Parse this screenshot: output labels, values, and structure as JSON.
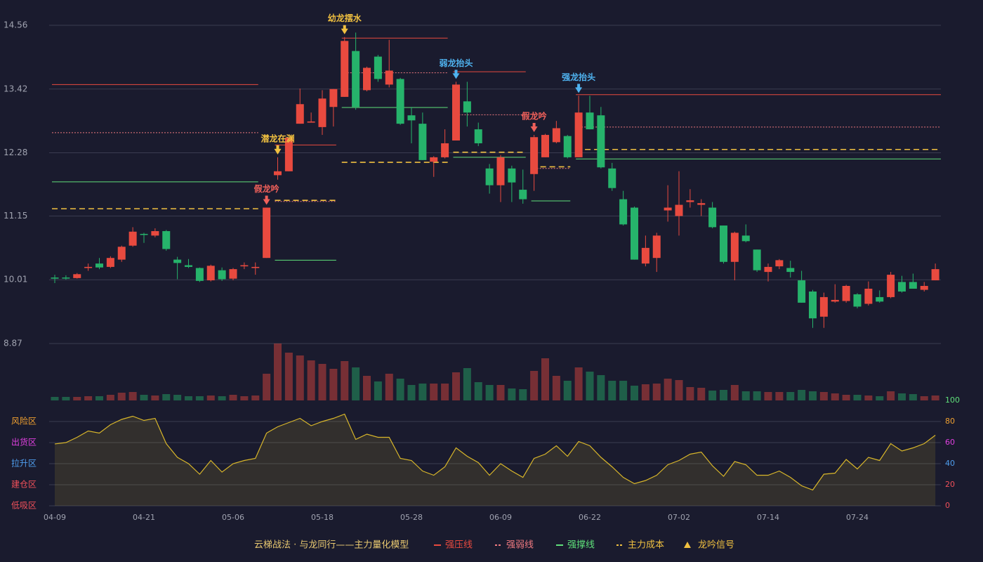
{
  "chart_data": [
    {
      "type": "candlestick",
      "categories": [
        "04-09",
        null,
        null,
        null,
        null,
        null,
        null,
        null,
        "04-21",
        null,
        null,
        null,
        null,
        null,
        null,
        null,
        "05-06",
        null,
        null,
        null,
        null,
        null,
        null,
        null,
        "05-18",
        null,
        null,
        null,
        null,
        null,
        null,
        null,
        "05-28",
        null,
        null,
        null,
        null,
        null,
        null,
        null,
        "06-09",
        null,
        null,
        null,
        null,
        null,
        null,
        null,
        "06-22",
        null,
        null,
        null,
        null,
        null,
        null,
        null,
        "07-02",
        null,
        null,
        null,
        null,
        null,
        null,
        null,
        "07-14",
        null,
        null,
        null,
        null,
        null,
        null,
        null,
        "07-24",
        null,
        null,
        null,
        null,
        null,
        null,
        null
      ],
      "open": [
        10.05,
        10.05,
        10.04,
        10.22,
        10.3,
        10.24,
        10.37,
        10.62,
        10.83,
        10.8,
        10.88,
        10.37,
        10.27,
        10.22,
        10.0,
        10.18,
        10.03,
        10.25,
        10.22,
        10.4,
        11.88,
        11.95,
        12.8,
        12.82,
        12.74,
        13.1,
        13.28,
        14.1,
        13.4,
        14.0,
        13.5,
        13.6,
        12.95,
        12.8,
        12.12,
        12.2,
        12.5,
        13.2,
        12.7,
        12.0,
        11.7,
        12.0,
        11.62,
        11.9,
        12.2,
        12.47,
        12.58,
        12.2,
        13.0,
        12.95,
        12.0,
        11.45,
        11.3,
        10.3,
        10.4,
        11.25,
        11.15,
        11.4,
        11.35,
        11.3,
        10.98,
        10.33,
        10.8,
        10.55,
        10.15,
        10.25,
        10.22,
        10.0,
        9.8,
        9.35,
        9.62,
        9.63,
        9.75,
        9.58,
        9.7,
        9.7,
        9.97,
        9.97,
        9.83,
        10.0
      ],
      "close": [
        10.03,
        10.04,
        10.11,
        10.24,
        10.23,
        10.4,
        10.6,
        10.87,
        10.82,
        10.88,
        10.56,
        10.31,
        10.24,
        9.99,
        10.26,
        10.02,
        10.2,
        10.27,
        10.24,
        11.3,
        11.95,
        12.55,
        13.15,
        12.84,
        13.25,
        13.42,
        14.28,
        13.1,
        13.8,
        13.6,
        13.75,
        12.8,
        12.86,
        12.15,
        12.2,
        12.45,
        13.5,
        13.0,
        12.45,
        11.7,
        12.2,
        11.75,
        11.45,
        12.56,
        12.6,
        12.72,
        12.2,
        13.0,
        12.7,
        12.02,
        11.65,
        11.0,
        10.37,
        10.58,
        10.8,
        11.3,
        11.35,
        11.43,
        11.38,
        10.95,
        10.33,
        10.85,
        10.7,
        10.18,
        10.24,
        10.36,
        10.15,
        9.6,
        9.32,
        9.7,
        9.65,
        9.9,
        9.53,
        9.85,
        9.62,
        10.1,
        9.8,
        9.85,
        9.9,
        10.2
      ],
      "high": [
        10.1,
        10.09,
        10.13,
        10.3,
        10.4,
        10.43,
        10.62,
        10.95,
        10.85,
        10.93,
        10.9,
        10.42,
        10.38,
        10.23,
        10.28,
        10.23,
        10.22,
        10.32,
        10.32,
        11.3,
        12.2,
        12.55,
        13.43,
        13.0,
        13.4,
        13.42,
        14.35,
        14.43,
        13.82,
        14.03,
        14.3,
        13.62,
        13.1,
        13.0,
        12.22,
        12.7,
        13.55,
        13.55,
        12.82,
        12.08,
        12.24,
        12.05,
        11.98,
        12.6,
        12.62,
        12.85,
        12.6,
        13.3,
        13.3,
        13.1,
        12.1,
        11.6,
        11.32,
        10.8,
        10.85,
        11.7,
        11.95,
        11.63,
        11.45,
        11.4,
        10.98,
        10.87,
        11.0,
        10.55,
        10.3,
        10.38,
        10.35,
        10.17,
        9.83,
        9.78,
        9.93,
        9.92,
        9.77,
        9.98,
        9.82,
        10.15,
        10.08,
        10.12,
        9.97,
        10.3
      ],
      "low": [
        9.95,
        10.01,
        10.03,
        10.17,
        10.2,
        10.22,
        10.33,
        10.6,
        10.67,
        10.77,
        10.53,
        10.02,
        10.22,
        9.97,
        9.98,
        9.99,
        10.0,
        10.2,
        10.1,
        10.4,
        11.8,
        11.95,
        12.8,
        12.82,
        12.6,
        12.75,
        13.28,
        13.05,
        13.38,
        13.55,
        13.45,
        12.78,
        12.45,
        12.15,
        11.85,
        12.18,
        12.5,
        12.75,
        12.4,
        11.55,
        11.4,
        11.4,
        11.37,
        11.6,
        12.2,
        12.45,
        12.18,
        12.2,
        12.7,
        12.0,
        11.6,
        10.98,
        10.37,
        10.25,
        10.15,
        11.05,
        10.8,
        11.3,
        11.15,
        10.93,
        10.3,
        10.0,
        10.68,
        10.15,
        9.98,
        10.2,
        10.05,
        9.6,
        9.15,
        9.15,
        9.6,
        9.6,
        9.5,
        9.55,
        9.6,
        9.68,
        9.78,
        9.85,
        9.8,
        10.0
      ],
      "up_color": "#e84a3f",
      "down_color": "#26b36b",
      "ylim": [
        8.87,
        14.56
      ],
      "yticks": [
        14.56,
        13.42,
        12.28,
        11.15,
        10.01,
        8.87
      ],
      "grid": true,
      "levels": [
        {
          "name": "强压线",
          "color": "#e84a3f",
          "style": "solid",
          "segments": [
            {
              "start": 0,
              "end": 18,
              "value": 13.5
            },
            {
              "start": 20,
              "end": 25,
              "value": 12.42
            },
            {
              "start": 26,
              "end": 35,
              "value": 14.33
            },
            {
              "start": 36,
              "end": 42,
              "value": 13.73
            },
            {
              "start": 47,
              "end": 79,
              "value": 13.32
            }
          ]
        },
        {
          "name": "强弱线",
          "color": "#f07a80",
          "style": "dotted",
          "segments": [
            {
              "start": 0,
              "end": 18,
              "value": 12.64
            },
            {
              "start": 20,
              "end": 25,
              "value": 11.41
            },
            {
              "start": 26,
              "end": 35,
              "value": 13.71
            },
            {
              "start": 36,
              "end": 42,
              "value": 12.96
            },
            {
              "start": 43,
              "end": 46,
              "value": 12.0
            },
            {
              "start": 47,
              "end": 79,
              "value": 12.74
            }
          ]
        },
        {
          "name": "强撑线",
          "color": "#5fe07a",
          "style": "solid",
          "segments": [
            {
              "start": 0,
              "end": 18,
              "value": 11.76
            },
            {
              "start": 20,
              "end": 25,
              "value": 10.36
            },
            {
              "start": 26,
              "end": 35,
              "value": 13.09
            },
            {
              "start": 36,
              "end": 42,
              "value": 12.2
            },
            {
              "start": 43,
              "end": 46,
              "value": 11.42
            },
            {
              "start": 47,
              "end": 79,
              "value": 12.17
            }
          ]
        },
        {
          "name": "主力成本",
          "color": "#f0c040",
          "style": "dashed",
          "segments": [
            {
              "start": 0,
              "end": 18,
              "value": 11.28
            },
            {
              "start": 20,
              "end": 25,
              "value": 11.43
            },
            {
              "start": 26,
              "end": 35,
              "value": 12.11
            },
            {
              "start": 36,
              "end": 42,
              "value": 12.29
            },
            {
              "start": 43,
              "end": 46,
              "value": 12.03
            },
            {
              "start": 47,
              "end": 79,
              "value": 12.34
            }
          ]
        }
      ],
      "signal_name": "龙吟信号",
      "signal_color": "#f0c040",
      "signals": [
        {
          "index": 19,
          "label": "假龙吟",
          "color": "#f0605a"
        },
        {
          "index": 20,
          "label": "潜龙在渊",
          "color": "#f0c040"
        },
        {
          "index": 26,
          "label": "幼龙摆水",
          "color": "#f0c040"
        },
        {
          "index": 36,
          "label": "弱龙抬头",
          "color": "#4fb3f0"
        },
        {
          "index": 43,
          "label": "假龙吟",
          "color": "#f0605a"
        },
        {
          "index": 47,
          "label": "强龙抬头",
          "color": "#4fb3f0"
        }
      ]
    },
    {
      "type": "bar",
      "values": [
        5,
        5,
        5,
        6,
        6,
        8,
        11,
        12,
        8,
        7,
        9,
        8,
        6,
        6,
        7,
        6,
        8,
        6,
        7,
        38,
        81,
        68,
        64,
        57,
        52,
        45,
        56,
        47,
        35,
        27,
        38,
        31,
        22,
        24,
        24,
        24,
        40,
        46,
        26,
        22,
        22,
        17,
        16,
        42,
        60,
        35,
        28,
        47,
        41,
        36,
        28,
        28,
        21,
        23,
        24,
        31,
        29,
        19,
        18,
        14,
        15,
        22,
        13,
        13,
        12,
        12,
        12,
        15,
        13,
        12,
        10,
        8,
        8,
        7,
        6,
        13,
        10,
        9,
        6,
        7
      ],
      "ylim": [
        0,
        81
      ]
    },
    {
      "type": "line",
      "values": [
        58.7,
        60,
        65,
        71,
        69,
        77,
        82,
        85,
        81,
        83,
        59,
        46,
        40,
        30,
        43,
        32,
        40,
        43,
        45,
        69,
        75,
        79,
        83,
        76,
        80,
        83,
        87,
        63,
        68,
        65,
        65,
        45,
        43,
        33,
        29,
        37,
        55,
        47,
        41,
        29,
        40,
        33,
        27,
        45,
        49,
        57,
        47,
        61,
        57,
        46,
        37,
        27,
        21,
        24,
        29,
        39,
        43,
        49,
        51,
        38,
        28,
        42,
        39,
        29,
        29,
        33,
        27,
        19,
        15,
        30,
        31,
        44,
        35,
        46,
        43,
        59,
        52,
        55,
        59,
        67
      ],
      "color": "#d8b62a",
      "ylim": [
        0,
        100
      ],
      "yticks": [
        {
          "value": 80,
          "label": "风险区"
        },
        {
          "value": 60,
          "label": "出货区"
        },
        {
          "value": 40,
          "label": "拉升区"
        },
        {
          "value": 20,
          "label": "建仓区"
        },
        {
          "value": 0,
          "label": "低吸区"
        }
      ],
      "zone_colors": [
        "#f0a030",
        "#e040e0",
        "#4f9ff0",
        "#f0505a",
        "#f0505a"
      ],
      "y2ticks": [
        0,
        20,
        40,
        60,
        80,
        100
      ],
      "y2tick_colors": [
        "#f0505a",
        "#f0505a",
        "#4f9ff0",
        "#e040e0",
        "#f0a030",
        "#5fe07a"
      ]
    }
  ],
  "legend_title": "云梯战法 · 与龙同行——主力量化模型"
}
